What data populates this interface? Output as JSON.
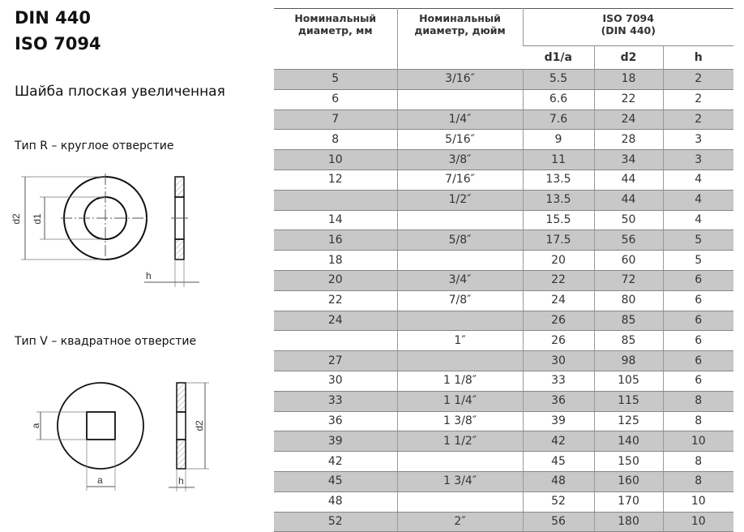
{
  "title_line1": "DIN 440",
  "title_line2": "ISO 7094",
  "subtitle": "Шайба плоская увеличенная",
  "type_r_caption": "Тип R – круглое отверстие",
  "type_v_caption": "Тип V – квадратное отверстие",
  "drawing_labels": {
    "d2": "d2",
    "d1": "d1",
    "h": "h",
    "a": "a"
  },
  "table": {
    "headers": {
      "nominal_mm": "Номинальный диаметр, мм",
      "nominal_inch": "Номинальный диаметр, дюйм",
      "standard_line1": "ISO 7094",
      "standard_line2": "(DIN 440)",
      "d1a": "d1/a",
      "d2": "d2",
      "h": "h"
    },
    "rows": [
      [
        "5",
        "3/16″",
        "5.5",
        "18",
        "2"
      ],
      [
        "6",
        "",
        "6.6",
        "22",
        "2"
      ],
      [
        "7",
        "1/4″",
        "7.6",
        "24",
        "2"
      ],
      [
        "8",
        "5/16″",
        "9",
        "28",
        "3"
      ],
      [
        "10",
        "3/8″",
        "11",
        "34",
        "3"
      ],
      [
        "12",
        "7/16″",
        "13.5",
        "44",
        "4"
      ],
      [
        "",
        "1/2″",
        "13.5",
        "44",
        "4"
      ],
      [
        "14",
        "",
        "15.5",
        "50",
        "4"
      ],
      [
        "16",
        "5/8″",
        "17.5",
        "56",
        "5"
      ],
      [
        "18",
        "",
        "20",
        "60",
        "5"
      ],
      [
        "20",
        "3/4″",
        "22",
        "72",
        "6"
      ],
      [
        "22",
        "7/8″",
        "24",
        "80",
        "6"
      ],
      [
        "24",
        "",
        "26",
        "85",
        "6"
      ],
      [
        "",
        "1″",
        "26",
        "85",
        "6"
      ],
      [
        "27",
        "",
        "30",
        "98",
        "6"
      ],
      [
        "30",
        "1 1/8″",
        "33",
        "105",
        "6"
      ],
      [
        "33",
        "1 1/4″",
        "36",
        "115",
        "8"
      ],
      [
        "36",
        "1 3/8″",
        "39",
        "125",
        "8"
      ],
      [
        "39",
        "1 1/2″",
        "42",
        "140",
        "10"
      ],
      [
        "42",
        "",
        "45",
        "150",
        "8"
      ],
      [
        "45",
        "1 3/4″",
        "48",
        "160",
        "8"
      ],
      [
        "48",
        "",
        "52",
        "170",
        "10"
      ],
      [
        "52",
        "2″",
        "56",
        "180",
        "10"
      ]
    ]
  }
}
